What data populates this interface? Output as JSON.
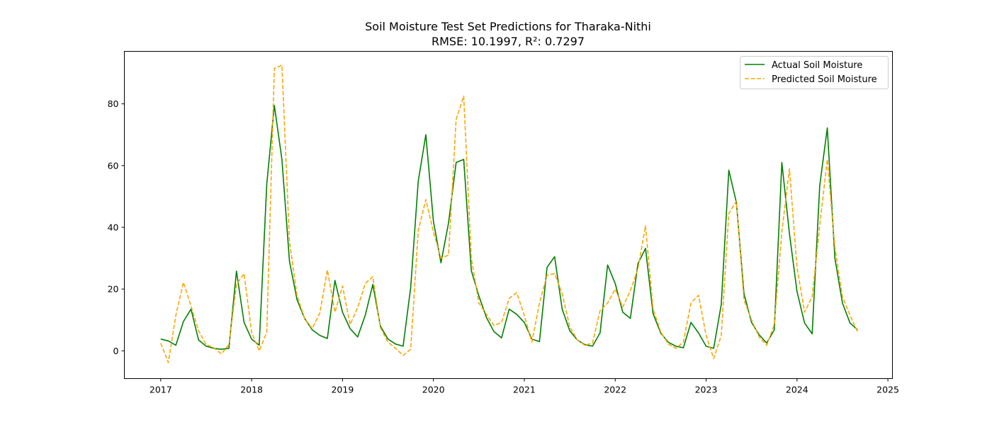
{
  "chart_data": {
    "type": "line",
    "title": "Soil Moisture Test Set Predictions for Tharaka-Nithi",
    "subtitle": "RMSE: 10.1997, R²: 0.7297",
    "xlabel": "",
    "ylabel": "",
    "xlim": [
      2016.6,
      2025.05
    ],
    "ylim": [
      -9,
      97
    ],
    "x_ticks": [
      "2017",
      "2018",
      "2019",
      "2020",
      "2021",
      "2022",
      "2023",
      "2024",
      "2025"
    ],
    "y_ticks": [
      "0",
      "20",
      "40",
      "60",
      "80"
    ],
    "grid": false,
    "legend_position": "top-right",
    "x_start_year": 2017,
    "series": [
      {
        "name": "Actual Soil Moisture",
        "color": "#008000",
        "style": "solid",
        "values": [
          3.8,
          3.2,
          1.8,
          9.5,
          13.5,
          3.5,
          1.5,
          0.8,
          0.5,
          0.8,
          25.8,
          9.2,
          3.8,
          1.8,
          54,
          79.5,
          62,
          29,
          16.5,
          10.5,
          6.8,
          5,
          4,
          22.8,
          12.5,
          7.2,
          4.5,
          11.5,
          21.5,
          8,
          3.8,
          2.2,
          1.5,
          20.5,
          55,
          70,
          42,
          28.5,
          41.5,
          61,
          62,
          26,
          17.8,
          10.8,
          6.2,
          4.2,
          13.5,
          11.8,
          9.2,
          3.8,
          3,
          27,
          30.5,
          13.5,
          6.5,
          3.5,
          2,
          1.5,
          5.8,
          27.8,
          21.8,
          12.5,
          10.5,
          28.2,
          33.2,
          12,
          5.8,
          2.8,
          1.5,
          1,
          9.2,
          5.8,
          1.5,
          0.8,
          15,
          58.5,
          48,
          18.5,
          9.2,
          5.2,
          2.5,
          6.8,
          61,
          38,
          19.2,
          9,
          5.5,
          53.5,
          72.2,
          30,
          15.5,
          9,
          6.8
        ]
      },
      {
        "name": "Predicted Soil Moisture",
        "color": "#FFA500",
        "style": "dashed",
        "values": [
          2.5,
          -3.8,
          11.5,
          22.2,
          14.5,
          6.5,
          2,
          1,
          -1,
          2,
          21.5,
          25,
          6,
          0,
          6,
          91.5,
          92.5,
          35.5,
          17.8,
          10.5,
          7.2,
          12.2,
          26.2,
          12.5,
          21,
          8.5,
          14,
          21.8,
          24,
          7.5,
          2.8,
          0.8,
          -1.5,
          0.5,
          39,
          49,
          38.5,
          30,
          31,
          75,
          82.5,
          30,
          15.5,
          11.8,
          8.2,
          9.2,
          17,
          18.8,
          11.5,
          2.8,
          15.5,
          24.5,
          25,
          18.5,
          7.8,
          3.5,
          1.8,
          2.5,
          13,
          15.5,
          20,
          14.2,
          19.5,
          26.5,
          40.5,
          13.5,
          6.2,
          2.2,
          0.8,
          2.8,
          15.5,
          18,
          5,
          -2.5,
          5,
          44.5,
          48.5,
          16.5,
          10,
          4.5,
          1.8,
          8.5,
          38.5,
          59,
          27,
          12.5,
          17.5,
          40.5,
          62,
          33.5,
          17.5,
          11.5,
          6.2
        ]
      }
    ]
  }
}
